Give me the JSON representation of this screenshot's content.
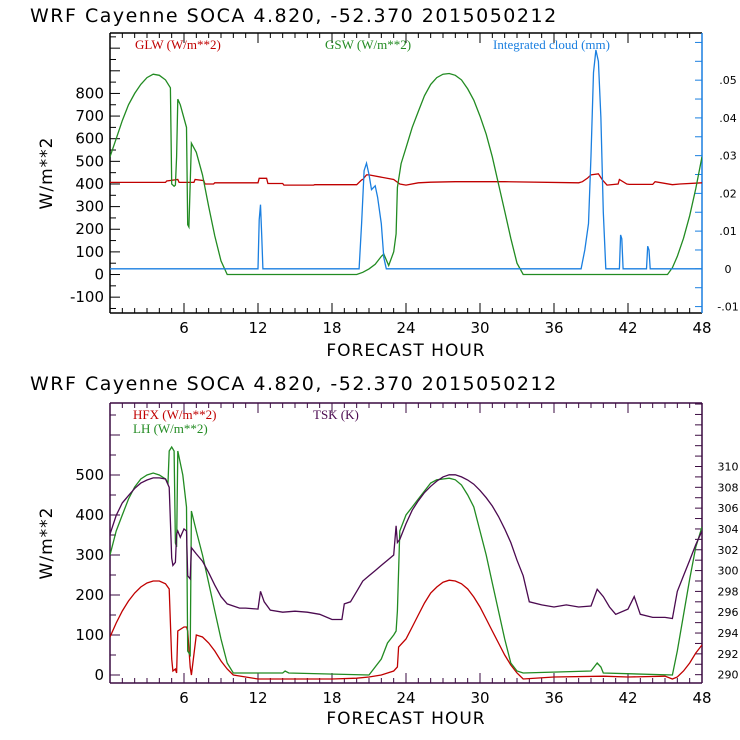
{
  "chart_data": [
    {
      "type": "line",
      "title": "WRF  Cayenne SOCA   4.820, -52.370  2015050212",
      "xlabel": "FORECAST HOUR",
      "ylabel": "W/m**2",
      "xlim": [
        0,
        48
      ],
      "ylim": [
        -170,
        1067
      ],
      "y2lim": [
        -0.0117,
        0.0625
      ],
      "x_ticks": [
        6,
        12,
        18,
        24,
        30,
        36,
        42,
        48
      ],
      "x_tick_labels": [
        "6",
        "12",
        "18",
        "24",
        "30",
        "36",
        "42",
        "48"
      ],
      "y_ticks": [
        -100,
        0,
        100,
        200,
        300,
        400,
        500,
        600,
        700,
        800
      ],
      "y_tick_labels": [
        "-100",
        "0",
        "100",
        "200",
        "300",
        "400",
        "500",
        "600",
        "700",
        "800"
      ],
      "y2_ticks": [
        -0.01,
        0,
        0.01,
        0.02,
        0.03,
        0.04,
        0.05
      ],
      "y2_tick_labels": [
        "-.01",
        "0",
        ".01",
        ".02",
        ".03",
        ".04",
        ".05"
      ],
      "grid": false,
      "legend_position": "top",
      "series": [
        {
          "name": "GLW (W/m**2)",
          "axis": "left",
          "color": "#c00000",
          "x": [
            0,
            4.5,
            4.6,
            5.5,
            5.6,
            6.8,
            6.9,
            7.6,
            7.7,
            8.4,
            8.5,
            12,
            12.1,
            12.7,
            12.8,
            14,
            14.1,
            16.5,
            16.6,
            20,
            20.4,
            20.5,
            20.8,
            21,
            23,
            23.5,
            24,
            25,
            26,
            28,
            32,
            38,
            38.3,
            38.7,
            39,
            39.6,
            39.9,
            40.3,
            41.2,
            41.3,
            41.9,
            42.1,
            44,
            44.2,
            45.6,
            46.2,
            48
          ],
          "y": [
            407,
            407,
            413,
            420,
            407,
            407,
            420,
            415,
            400,
            400,
            405,
            405,
            425,
            425,
            402,
            402,
            395,
            395,
            397,
            397,
            418,
            420,
            440,
            440,
            420,
            400,
            395,
            405,
            408,
            410,
            410,
            405,
            410,
            425,
            440,
            445,
            420,
            395,
            400,
            420,
            400,
            398,
            398,
            410,
            397,
            400,
            405
          ]
        },
        {
          "name": "GSW (W/m**2)",
          "axis": "left",
          "color": "#228b22",
          "x": [
            0,
            0.5,
            1,
            1.5,
            2,
            2.5,
            3,
            3.5,
            4,
            4.5,
            4.9,
            5.0,
            5.2,
            5.3,
            5.4,
            5.5,
            5.7,
            6.2,
            6.3,
            6.4,
            6.6,
            7,
            7.5,
            8,
            8.5,
            9,
            9.5,
            20,
            20.5,
            21,
            21.5,
            22,
            22.2,
            22.6,
            23,
            23.2,
            23.3,
            23.6,
            24,
            24.5,
            25,
            25.5,
            26,
            26.5,
            27,
            27.5,
            28,
            28.5,
            29,
            29.5,
            30,
            30.5,
            31,
            31.5,
            32,
            32.5,
            33,
            33.5,
            45.2,
            45.6,
            46,
            46.5,
            47,
            47.5,
            48
          ],
          "y": [
            520,
            600,
            680,
            750,
            800,
            840,
            870,
            885,
            880,
            860,
            825,
            400,
            390,
            395,
            520,
            775,
            750,
            650,
            220,
            210,
            580,
            540,
            440,
            300,
            170,
            60,
            0,
            0,
            10,
            25,
            45,
            80,
            90,
            40,
            100,
            180,
            385,
            490,
            560,
            650,
            720,
            790,
            840,
            870,
            885,
            888,
            880,
            860,
            820,
            770,
            700,
            620,
            520,
            400,
            280,
            160,
            50,
            0,
            0,
            30,
            80,
            160,
            260,
            380,
            520
          ]
        },
        {
          "name": "Integrated cloud (mm)",
          "axis": "right",
          "color": "#1a7fe0",
          "x": [
            0,
            12.0,
            12.1,
            12.2,
            12.3,
            12.4,
            20.2,
            20.4,
            20.6,
            20.8,
            21,
            21.2,
            21.5,
            21.7,
            22,
            22.2,
            22.4,
            38.2,
            38.5,
            38.8,
            39.0,
            39.2,
            39.4,
            39.6,
            39.8,
            40.0,
            40.2,
            41.3,
            41.4,
            41.5,
            41.6,
            43.5,
            43.6,
            43.7,
            43.8,
            48
          ],
          "y": [
            0,
            0,
            0.013,
            0.017,
            0.009,
            0,
            0,
            0.012,
            0.026,
            0.028,
            0.025,
            0.021,
            0.022,
            0.019,
            0.012,
            0.003,
            0,
            0,
            0.005,
            0.012,
            0.03,
            0.052,
            0.058,
            0.055,
            0.04,
            0.015,
            0,
            0,
            0.009,
            0.008,
            0,
            0,
            0.006,
            0.005,
            0,
            0
          ]
        }
      ]
    },
    {
      "type": "line",
      "title": "WRF  Cayenne SOCA   4.820, -52.370  2015050212",
      "xlabel": "FORECAST HOUR",
      "ylabel": "W/m**2",
      "xlim": [
        0,
        48
      ],
      "ylim": [
        -20,
        680
      ],
      "y2lim": [
        289.2,
        316.1
      ],
      "x_ticks": [
        6,
        12,
        18,
        24,
        30,
        36,
        42,
        48
      ],
      "x_tick_labels": [
        "6",
        "12",
        "18",
        "24",
        "30",
        "36",
        "42",
        "48"
      ],
      "y_ticks": [
        0,
        100,
        200,
        300,
        400,
        500
      ],
      "y_tick_labels": [
        "0",
        "100",
        "200",
        "300",
        "400",
        "500"
      ],
      "y2_ticks": [
        290,
        292,
        294,
        296,
        298,
        300,
        302,
        304,
        306,
        308,
        310
      ],
      "y2_tick_labels": [
        "290",
        "292",
        "294",
        "296",
        "298",
        "300",
        "302",
        "304",
        "306",
        "308",
        "310"
      ],
      "grid": false,
      "legend_position": "top-left",
      "series": [
        {
          "name": "HFX (W/m**2)",
          "axis": "left",
          "color": "#c00000",
          "x": [
            0,
            0.5,
            1,
            1.5,
            2,
            2.5,
            3,
            3.5,
            4,
            4.5,
            4.8,
            5.0,
            5.1,
            5.3,
            5.4,
            5.5,
            6.0,
            6.2,
            6.3,
            6.5,
            6.6,
            7,
            7.5,
            8,
            8.5,
            9,
            9.5,
            10,
            12,
            18,
            20,
            21,
            22,
            22.5,
            23,
            23.3,
            23.4,
            24,
            24.5,
            25,
            25.5,
            26,
            26.5,
            27,
            27.5,
            28,
            28.5,
            29,
            29.5,
            30,
            30.5,
            31,
            31.5,
            32,
            32.5,
            33,
            33.5,
            36,
            40,
            42,
            45,
            45.6,
            46,
            46.5,
            47,
            47.5,
            48
          ],
          "y": [
            95,
            130,
            160,
            185,
            205,
            220,
            230,
            235,
            235,
            228,
            215,
            40,
            10,
            15,
            5,
            110,
            120,
            120,
            110,
            20,
            0,
            100,
            95,
            80,
            60,
            35,
            15,
            0,
            -10,
            -10,
            -8,
            -5,
            0,
            5,
            10,
            20,
            70,
            90,
            120,
            150,
            180,
            205,
            220,
            232,
            237,
            235,
            228,
            215,
            195,
            170,
            140,
            110,
            80,
            50,
            25,
            5,
            -10,
            -5,
            -3,
            -5,
            -3,
            -10,
            -5,
            10,
            30,
            55,
            75
          ]
        },
        {
          "name": "LH (W/m**2)",
          "axis": "left",
          "color": "#228b22",
          "x": [
            0,
            0.5,
            1,
            1.5,
            2,
            2.5,
            3,
            3.5,
            4,
            4.5,
            4.7,
            4.8,
            5.0,
            5.2,
            5.3,
            5.4,
            5.5,
            5.9,
            6.2,
            6.3,
            6.5,
            6.6,
            7,
            7.5,
            8,
            8.5,
            9,
            9.5,
            10,
            14,
            14.2,
            14.5,
            21,
            22,
            22.5,
            23,
            23.2,
            23.3,
            23.5,
            24,
            24.5,
            25,
            25.5,
            26,
            26.5,
            27,
            27.5,
            28,
            28.5,
            29,
            29.5,
            30,
            30.5,
            31,
            31.5,
            32,
            32.5,
            33,
            33.5,
            39,
            39.5,
            39.8,
            40,
            45.6,
            46,
            46.5,
            47,
            47.5,
            48
          ],
          "y": [
            300,
            360,
            400,
            440,
            470,
            490,
            500,
            505,
            500,
            490,
            480,
            560,
            570,
            560,
            330,
            320,
            560,
            500,
            420,
            60,
            50,
            410,
            360,
            300,
            230,
            160,
            90,
            30,
            5,
            5,
            10,
            5,
            0,
            40,
            80,
            100,
            110,
            160,
            360,
            400,
            420,
            440,
            460,
            480,
            488,
            490,
            492,
            488,
            475,
            450,
            420,
            360,
            300,
            230,
            160,
            90,
            30,
            10,
            5,
            10,
            30,
            20,
            5,
            0,
            60,
            150,
            240,
            320,
            370
          ]
        },
        {
          "name": "TSK (K)",
          "axis": "right",
          "color": "#4b0a50",
          "x": [
            0,
            0.5,
            1,
            1.5,
            2,
            2.5,
            3,
            3.5,
            4,
            4.5,
            4.8,
            5.0,
            5.1,
            5.3,
            5.4,
            5.5,
            5.7,
            6.0,
            6.2,
            6.3,
            6.5,
            6.6,
            7,
            7.5,
            8,
            8.5,
            9,
            9.5,
            10,
            10.5,
            11,
            12,
            12.2,
            12.5,
            13,
            14,
            15,
            16,
            17,
            18,
            18.8,
            19,
            19.5,
            20,
            20.5,
            21,
            21.5,
            22,
            22.5,
            23,
            23.2,
            23.3,
            23.5,
            24,
            24.5,
            25,
            25.5,
            26,
            26.5,
            27,
            27.5,
            28,
            28.5,
            29,
            29.5,
            30,
            30.5,
            31,
            31.5,
            32,
            32.5,
            33,
            33.5,
            34,
            35,
            36,
            37,
            38,
            39,
            39.5,
            40,
            40.5,
            41,
            42,
            42.5,
            43,
            44,
            45,
            45.6,
            46,
            46.5,
            47,
            47.5,
            48
          ],
          "y": [
            303.5,
            305.3,
            306.5,
            307.2,
            307.9,
            308.4,
            308.7,
            308.9,
            308.9,
            308.8,
            308.0,
            301.2,
            300.5,
            300.8,
            303.5,
            303.8,
            303.2,
            304.0,
            303.8,
            299.5,
            299.2,
            302.2,
            301.6,
            300.9,
            299.8,
            298.6,
            297.5,
            296.8,
            296.6,
            296.4,
            296.4,
            296.3,
            298.0,
            297.0,
            296.2,
            296.0,
            296.1,
            296.0,
            295.8,
            295.3,
            295.3,
            296.8,
            297.0,
            298.0,
            299.0,
            299.5,
            300.0,
            300.5,
            301.0,
            301.5,
            304.3,
            302.7,
            303.0,
            304.5,
            305.8,
            306.7,
            307.5,
            308.1,
            308.6,
            309.0,
            309.2,
            309.2,
            309.0,
            308.7,
            308.3,
            307.7,
            307.0,
            306.2,
            305.2,
            304.0,
            302.7,
            301.0,
            299.5,
            297.0,
            296.7,
            296.5,
            296.7,
            296.5,
            296.6,
            298.2,
            297.5,
            296.5,
            295.8,
            296.3,
            297.5,
            295.8,
            295.5,
            295.5,
            295.4,
            298.0,
            299.5,
            301.0,
            302.5,
            303.8
          ]
        }
      ]
    }
  ],
  "figure": {
    "top_title": "WRF  Cayenne SOCA   4.820, -52.370  2015050212",
    "bottom_title": "WRF  Cayenne SOCA   4.820, -52.370  2015050212",
    "top_axis_color": "#000000",
    "top_right_axis_color": "#1a7fe0",
    "bottom_axis_color": "#3a0a40"
  }
}
